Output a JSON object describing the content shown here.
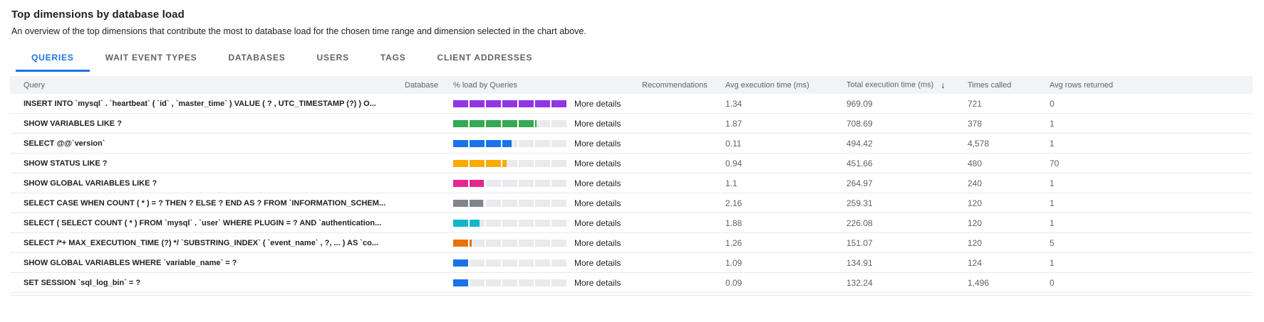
{
  "header": {
    "title": "Top dimensions by database load",
    "subtitle": "An overview of the top dimensions that contribute the most to database load for the chosen time range and dimension selected in the chart above."
  },
  "tabs": [
    {
      "label": "QUERIES",
      "active": true
    },
    {
      "label": "WAIT EVENT TYPES",
      "active": false
    },
    {
      "label": "DATABASES",
      "active": false
    },
    {
      "label": "USERS",
      "active": false
    },
    {
      "label": "TAGS",
      "active": false
    },
    {
      "label": "CLIENT ADDRESSES",
      "active": false
    }
  ],
  "table": {
    "columns": {
      "query": "Query",
      "database": "Database",
      "load": "% load by Queries",
      "recommendations": "Recommendations",
      "avg_exec": "Avg execution time (ms)",
      "total_exec": "Total execution time (ms)",
      "times_called": "Times called",
      "avg_rows": "Avg rows returned"
    },
    "sort_icon": "↓",
    "more_details_label": "More details",
    "rows": [
      {
        "query": "INSERT INTO `mysql` . `heartbeat` ( `id` , `master_time` ) VALUE ( ? , UTC_TIMESTAMP (?) ) O...",
        "database": "",
        "load_pct": 100,
        "bar_color": "#9334e6",
        "avg_exec_ms": "1.34",
        "total_exec_ms": "969.09",
        "times_called": "721",
        "avg_rows_returned": "0"
      },
      {
        "query": "SHOW VARIABLES LIKE ?",
        "database": "",
        "load_pct": 73,
        "bar_color": "#34a853",
        "avg_exec_ms": "1.87",
        "total_exec_ms": "708.69",
        "times_called": "378",
        "avg_rows_returned": "1"
      },
      {
        "query": "SELECT @@`version`",
        "database": "",
        "load_pct": 51,
        "bar_color": "#1a73e8",
        "avg_exec_ms": "0.11",
        "total_exec_ms": "494.42",
        "times_called": "4,578",
        "avg_rows_returned": "1"
      },
      {
        "query": "SHOW STATUS LIKE ?",
        "database": "",
        "load_pct": 47,
        "bar_color": "#f9ab00",
        "avg_exec_ms": "0.94",
        "total_exec_ms": "451.66",
        "times_called": "480",
        "avg_rows_returned": "70"
      },
      {
        "query": "SHOW GLOBAL VARIABLES LIKE ?",
        "database": "",
        "load_pct": 27,
        "bar_color": "#e52592",
        "avg_exec_ms": "1.1",
        "total_exec_ms": "264.97",
        "times_called": "240",
        "avg_rows_returned": "1"
      },
      {
        "query": "SELECT CASE WHEN COUNT ( * ) = ? THEN ? ELSE ? END AS ? FROM `INFORMATION_SCHEM...",
        "database": "",
        "load_pct": 26,
        "bar_color": "#80868b",
        "avg_exec_ms": "2.16",
        "total_exec_ms": "259.31",
        "times_called": "120",
        "avg_rows_returned": "1"
      },
      {
        "query": "SELECT ( SELECT COUNT ( * ) FROM `mysql` . `user` WHERE PLUGIN = ? AND `authentication...",
        "database": "",
        "load_pct": 23,
        "bar_color": "#12b5cb",
        "avg_exec_ms": "1.88",
        "total_exec_ms": "226.08",
        "times_called": "120",
        "avg_rows_returned": "1"
      },
      {
        "query": "SELECT /*+ MAX_EXECUTION_TIME (?) */ `SUBSTRING_INDEX` ( `event_name` , ?, ... ) AS `co...",
        "database": "",
        "load_pct": 16,
        "bar_color": "#e8710a",
        "avg_exec_ms": "1.26",
        "total_exec_ms": "151.07",
        "times_called": "120",
        "avg_rows_returned": "5"
      },
      {
        "query": "SHOW GLOBAL VARIABLES WHERE `variable_name` = ?",
        "database": "",
        "load_pct": 14,
        "bar_color": "#1a73e8",
        "avg_exec_ms": "1.09",
        "total_exec_ms": "134.91",
        "times_called": "124",
        "avg_rows_returned": "1"
      },
      {
        "query": "SET SESSION `sql_log_bin` = ?",
        "database": "",
        "load_pct": 13,
        "bar_color": "#1a73e8",
        "avg_exec_ms": "0.09",
        "total_exec_ms": "132.24",
        "times_called": "1,496",
        "avg_rows_returned": "0"
      }
    ]
  }
}
